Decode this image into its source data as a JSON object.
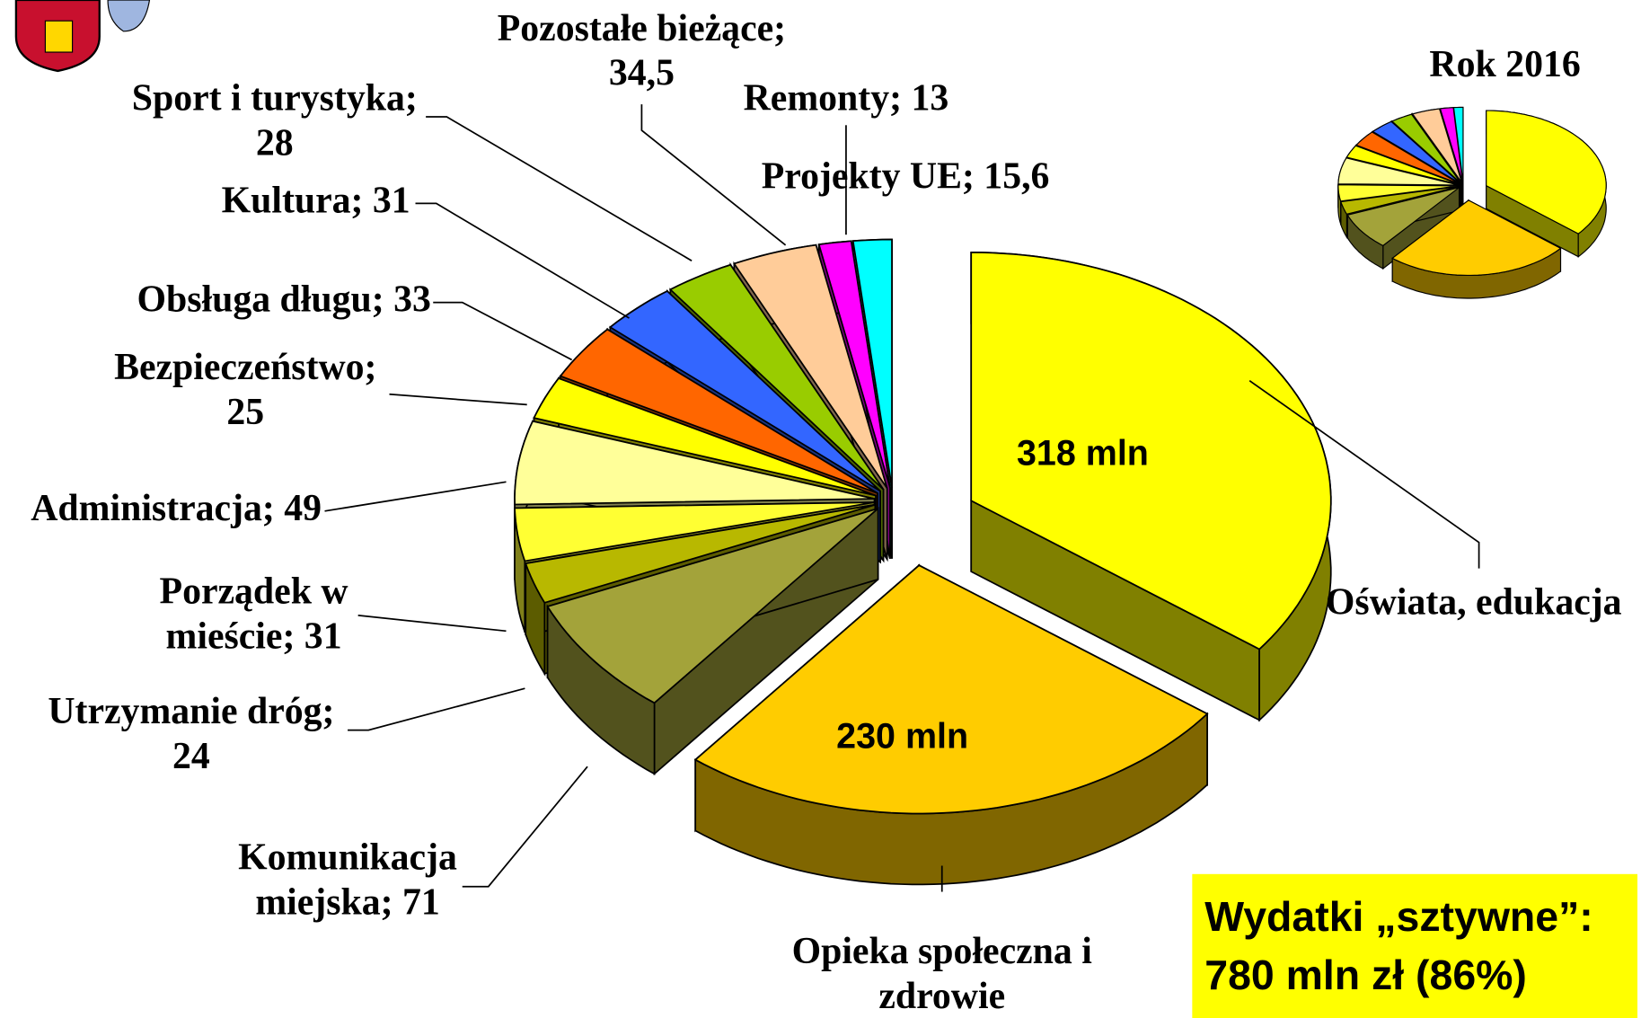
{
  "chart_data": [
    {
      "type": "pie",
      "labels": [
        [
          "Oświata, edukacja"
        ],
        [
          "Opieka społeczna i",
          "zdrowie"
        ],
        [
          "Komunikacja",
          "miejska; 71"
        ],
        [
          "Utrzymanie dróg;",
          "24"
        ],
        [
          "Porządek w",
          "mieście; 31"
        ],
        [
          "Administracja; 49"
        ],
        [
          "Bezpieczeństwo;",
          "25"
        ],
        [
          "Obsługa długu; 33"
        ],
        [
          "Kultura; 31"
        ],
        [
          "Sport i turystyka;",
          "28"
        ],
        [
          "Pozostałe bieżące;",
          "34,5"
        ],
        [
          "Remonty; 13"
        ],
        [
          "Projekty UE; 15,6"
        ]
      ],
      "values": [
        318,
        230,
        71,
        24,
        31,
        49,
        25,
        33,
        31,
        28,
        34.5,
        13,
        15.6
      ],
      "value_labels": [
        "318 mln",
        "230 mln",
        null,
        null,
        null,
        null,
        null,
        null,
        null,
        null,
        null,
        null,
        null
      ],
      "colors": [
        "#ffff00",
        "#ffcc00",
        "#a3a33a",
        "#b8b800",
        "#ffff33",
        "#ffff99",
        "#ffff00",
        "#ff6600",
        "#3366ff",
        "#99cc00",
        "#ffcc99",
        "#ff00ff",
        "#00ffff"
      ]
    },
    {
      "type": "pie",
      "title": "Rok 2016",
      "values": [
        290,
        200,
        65,
        22,
        28,
        45,
        22,
        28,
        26,
        24,
        30,
        14,
        10
      ],
      "colors": [
        "#ffff00",
        "#ffcc00",
        "#a3a33a",
        "#b8b800",
        "#ffff33",
        "#ffff99",
        "#ffff00",
        "#ff6600",
        "#3366ff",
        "#99cc00",
        "#ffcc99",
        "#ff00ff",
        "#00ffff"
      ]
    }
  ],
  "annotation": [
    "Wydatki „sztywne”:",
    "780 mln zł (86%)"
  ]
}
